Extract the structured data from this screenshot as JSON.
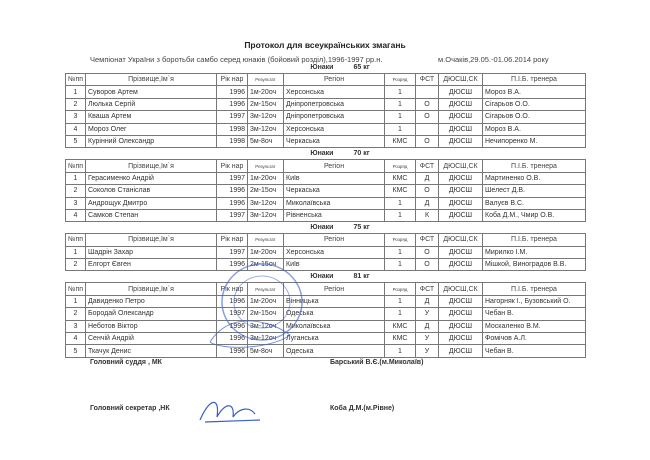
{
  "title": "Протокол для всеукраїнських змагань",
  "subtitle": "Чемпіонат України з боротьби самбо серед юнаків (бойовий розділ),1996-1997 рр.н.",
  "place_date": "м.Очаків,29.05.-01.06.2014 року",
  "headers": [
    "№пп",
    "Прізвище,Ім`я",
    "Рік нар",
    "Результат",
    "Регіон",
    "Розряд",
    "ФСТ",
    "ДЮСШ,СК",
    "П.І.Б. тренера"
  ],
  "groups": [
    {
      "label": "Юнаки",
      "weight": "65 кг",
      "rows": [
        [
          "1",
          "Суворов Артем",
          "1996",
          "1м-20оч",
          "Херсонська",
          "1",
          "",
          "ДЮСШ",
          "Мороз В.А."
        ],
        [
          "2",
          "Люлька Сергій",
          "1996",
          "2м-15оч",
          "Дніпропетровська",
          "1",
          "О",
          "ДЮСШ",
          "Сігарьов О.О."
        ],
        [
          "3",
          "Кваша Артем",
          "1997",
          "3м-12оч",
          "Дніпропетровська",
          "1",
          "О",
          "ДЮСШ",
          "Сігарьов О.О."
        ],
        [
          "4",
          "Мороз Олег",
          "1998",
          "3м-12оч",
          "Херсонська",
          "1",
          "",
          "ДЮСШ",
          "Мороз В.А."
        ],
        [
          "5",
          "Курінний Олександр",
          "1998",
          "5м-8оч",
          "Черкаська",
          "КМС",
          "О",
          "ДЮСШ",
          "Нечипоренко М."
        ]
      ]
    },
    {
      "label": "Юнаки",
      "weight": "70 кг",
      "rows": [
        [
          "1",
          "Герасименко Андрій",
          "1997",
          "1м-20оч",
          "Київ",
          "КМС",
          "Д",
          "ДЮСШ",
          "Мартиненко О.В."
        ],
        [
          "2",
          "Соколов Станіслав",
          "1996",
          "2м-15оч",
          "Черкаська",
          "КМС",
          "О",
          "ДЮСШ",
          "Шелест Д.В."
        ],
        [
          "3",
          "Андрощук Дмитро",
          "1996",
          "3м-12оч",
          "Миколаївська",
          "1",
          "Д",
          "ДЮСШ",
          "Валуєв В.С."
        ],
        [
          "4",
          "Самков Степан",
          "1997",
          "3м-12оч",
          "Рівненська",
          "1",
          "К",
          "ДЮСШ",
          "Коба Д.М., Чмир О.В."
        ]
      ]
    },
    {
      "label": "Юнаки",
      "weight": "75 кг",
      "rows": [
        [
          "1",
          "Шадрін Захар",
          "1997",
          "1м-20оч",
          "Херсонська",
          "1",
          "О",
          "ДЮСШ",
          "Мирилко І.М."
        ],
        [
          "2",
          "Елгорт Євген",
          "1996",
          "2м-15оч",
          "Київ",
          "1",
          "О",
          "ДЮСШ",
          "Мішкой, Виноградов В.В."
        ]
      ]
    },
    {
      "label": "Юнаки",
      "weight": "81 кг",
      "rows": [
        [
          "1",
          "Давиденко Петро",
          "1996",
          "1м-20оч",
          "Вінницька",
          "1",
          "Д",
          "ДЮСШ",
          "Нагорняк І., Бузовський О."
        ],
        [
          "2",
          "Бородай Олександр",
          "1997",
          "2м-15оч",
          "Одеська",
          "1",
          "У",
          "ДЮСШ",
          "Чебан В."
        ],
        [
          "3",
          "Неботов Віктор",
          "1996",
          "3м-12оч",
          "Миколаївська",
          "КМС",
          "Д",
          "ДЮСШ",
          "Москаленко В.М."
        ],
        [
          "4",
          "Сенчій Андрій",
          "1996",
          "3м-12оч",
          "Луганська",
          "КМС",
          "У",
          "ДЮСШ",
          "Фомічов А.Л."
        ],
        [
          "5",
          "Ткачук Денис",
          "1996",
          "5м-8оч",
          "Одеська",
          "1",
          "У",
          "ДЮСШ",
          "Чебан В."
        ]
      ]
    }
  ],
  "signatures": {
    "judge_role": "Головний суддя , МК",
    "judge_name": "Барський В.Є.(м.Миколаїв)",
    "secretary_role": "Головний секретар ,НК",
    "secretary_name": "Коба Д.М.(м.Рівне)",
    "stamp_color": "#3a5fc8"
  }
}
